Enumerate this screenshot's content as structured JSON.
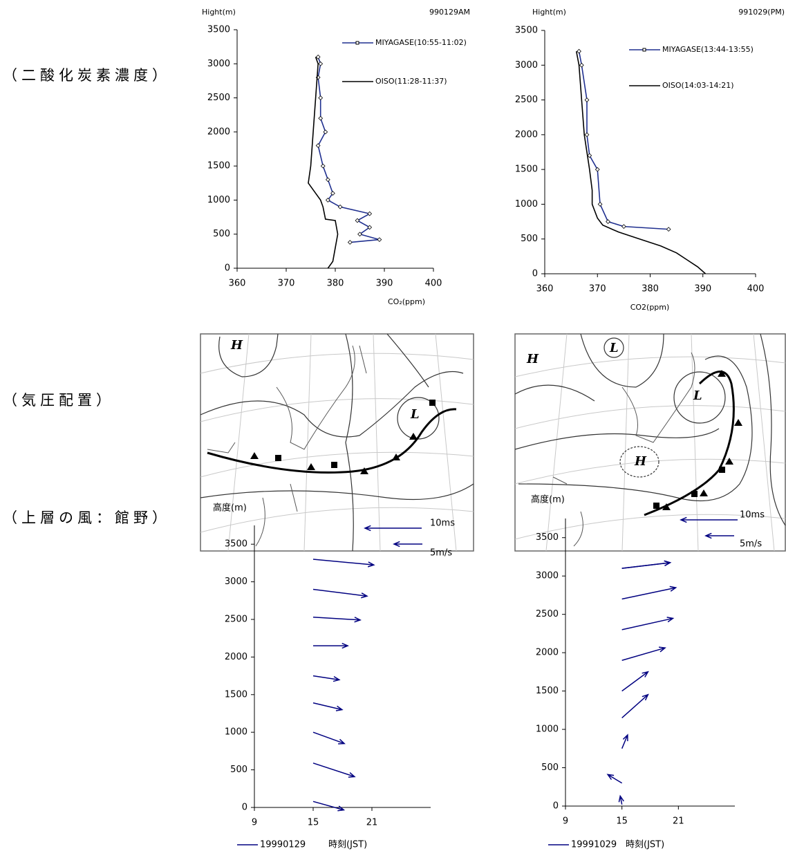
{
  "row_labels": [
    "（二酸化炭素濃度）",
    "（気圧配置）",
    "（上層の風：館野）"
  ],
  "maps": [
    {
      "labels": [
        "H",
        "L"
      ]
    },
    {
      "labels": [
        "H",
        "L",
        "L",
        "H"
      ]
    }
  ],
  "chart_data": [
    {
      "type": "profile",
      "title": "990129AM",
      "y_label": "Hight(m)",
      "x_label": "CO₂(ppm)",
      "xlim": [
        360,
        400
      ],
      "xticks": [
        360,
        370,
        380,
        390,
        400
      ],
      "ylim": [
        0,
        3500
      ],
      "yticks": [
        0,
        500,
        1000,
        1500,
        2000,
        2500,
        3000,
        3500
      ],
      "series": [
        {
          "name": "MIYAGASE(10:55-11:02)",
          "color": "#1f2f8f",
          "x": [
            383,
            389,
            385,
            387,
            384.5,
            387,
            381,
            378.5,
            379.5,
            378.5,
            377.5,
            376.5,
            378,
            377,
            377,
            376.5,
            377,
            376.5
          ],
          "values": [
            380,
            420,
            500,
            600,
            700,
            800,
            900,
            1000,
            1100,
            1300,
            1500,
            1800,
            2000,
            2200,
            2500,
            2800,
            3000,
            3100
          ]
        },
        {
          "name": "OISO(11:28-11:37)",
          "color": "#000000",
          "x": [
            378.5,
            379.5,
            380,
            380.5,
            380,
            378,
            377.5,
            377,
            376,
            375,
            374.5,
            375,
            375.5,
            376,
            376.5,
            376
          ],
          "values": [
            0,
            100,
            300,
            500,
            700,
            720,
            900,
            1000,
            1100,
            1200,
            1250,
            1500,
            2000,
            2500,
            3000,
            3100
          ]
        }
      ]
    },
    {
      "type": "profile",
      "title": "991029(PM)",
      "y_label": "Hight(m)",
      "x_label": "CO2(ppm)",
      "xlim": [
        360,
        400
      ],
      "xticks": [
        360,
        370,
        380,
        390,
        400
      ],
      "ylim": [
        0,
        3500
      ],
      "yticks": [
        0,
        500,
        1000,
        1500,
        2000,
        2500,
        3000,
        3500
      ],
      "series": [
        {
          "name": "MIYAGASE(13:44-13:55)",
          "color": "#1f2f8f",
          "x": [
            383.5,
            375,
            372,
            370.5,
            370,
            368.5,
            368,
            368,
            367,
            366.5
          ],
          "values": [
            640,
            680,
            750,
            1000,
            1500,
            1700,
            2000,
            2500,
            3000,
            3200
          ]
        },
        {
          "name": "OISO(14:03-14:21)",
          "color": "#000000",
          "x": [
            390.5,
            389,
            387,
            385,
            382,
            378,
            374,
            371,
            370,
            369,
            369,
            368.5,
            367.5,
            367,
            366.5,
            366
          ],
          "values": [
            0,
            100,
            200,
            300,
            400,
            500,
            600,
            700,
            800,
            1000,
            1200,
            1500,
            2000,
            2500,
            3000,
            3200
          ]
        }
      ]
    },
    {
      "type": "quiver",
      "y_label": "高度(m)",
      "x_label": "時刻(JST)",
      "xlim": [
        9,
        27
      ],
      "xticks": [
        9,
        15,
        21
      ],
      "ylim": [
        0,
        3750
      ],
      "yticks": [
        0,
        500,
        1000,
        1500,
        2000,
        2500,
        3000,
        3500
      ],
      "reference": [
        {
          "label": "10ms",
          "speed": 10
        },
        {
          "label": "5m/s",
          "speed": 5
        }
      ],
      "series": [
        {
          "name": "19990129",
          "color": "#000080",
          "x": [
            15,
            15,
            15,
            15,
            15,
            15,
            15,
            15,
            15
          ],
          "values": [
            80,
            590,
            1000,
            1390,
            1750,
            2150,
            2530,
            2900,
            3300
          ],
          "u": [
            5.4,
            7.3,
            5.5,
            5.1,
            4.6,
            6.1,
            8.3,
            9.5,
            10.7
          ],
          "v": [
            -1.5,
            -2.4,
            -2.0,
            -1.2,
            -0.7,
            0,
            -0.5,
            -1.2,
            -1.0
          ]
        }
      ]
    },
    {
      "type": "quiver",
      "y_label": "高度(m)",
      "x_label": "時刻(JST)",
      "xlim": [
        9,
        27
      ],
      "xticks": [
        9,
        15,
        21
      ],
      "ylim": [
        0,
        3750
      ],
      "yticks": [
        0,
        500,
        1000,
        1500,
        2000,
        2500,
        3000,
        3500
      ],
      "reference": [
        {
          "label": "10ms",
          "speed": 10
        },
        {
          "label": "5m/s",
          "speed": 5
        }
      ],
      "series": [
        {
          "name": "19991029",
          "color": "#000080",
          "x": [
            15,
            15,
            15,
            15,
            15,
            15,
            15,
            15,
            15,
            15
          ],
          "values": [
            20,
            300,
            750,
            1150,
            1500,
            1900,
            2300,
            2700,
            3100,
            3100
          ],
          "u": [
            -0.3,
            -2.5,
            1.0,
            4.6,
            4.6,
            7.6,
            9.0,
            9.5,
            8.5,
            8.5
          ],
          "v": [
            1.5,
            1.5,
            2.4,
            4.1,
            3.4,
            2.2,
            2.0,
            2.0,
            1.0,
            1.0
          ]
        }
      ]
    }
  ]
}
